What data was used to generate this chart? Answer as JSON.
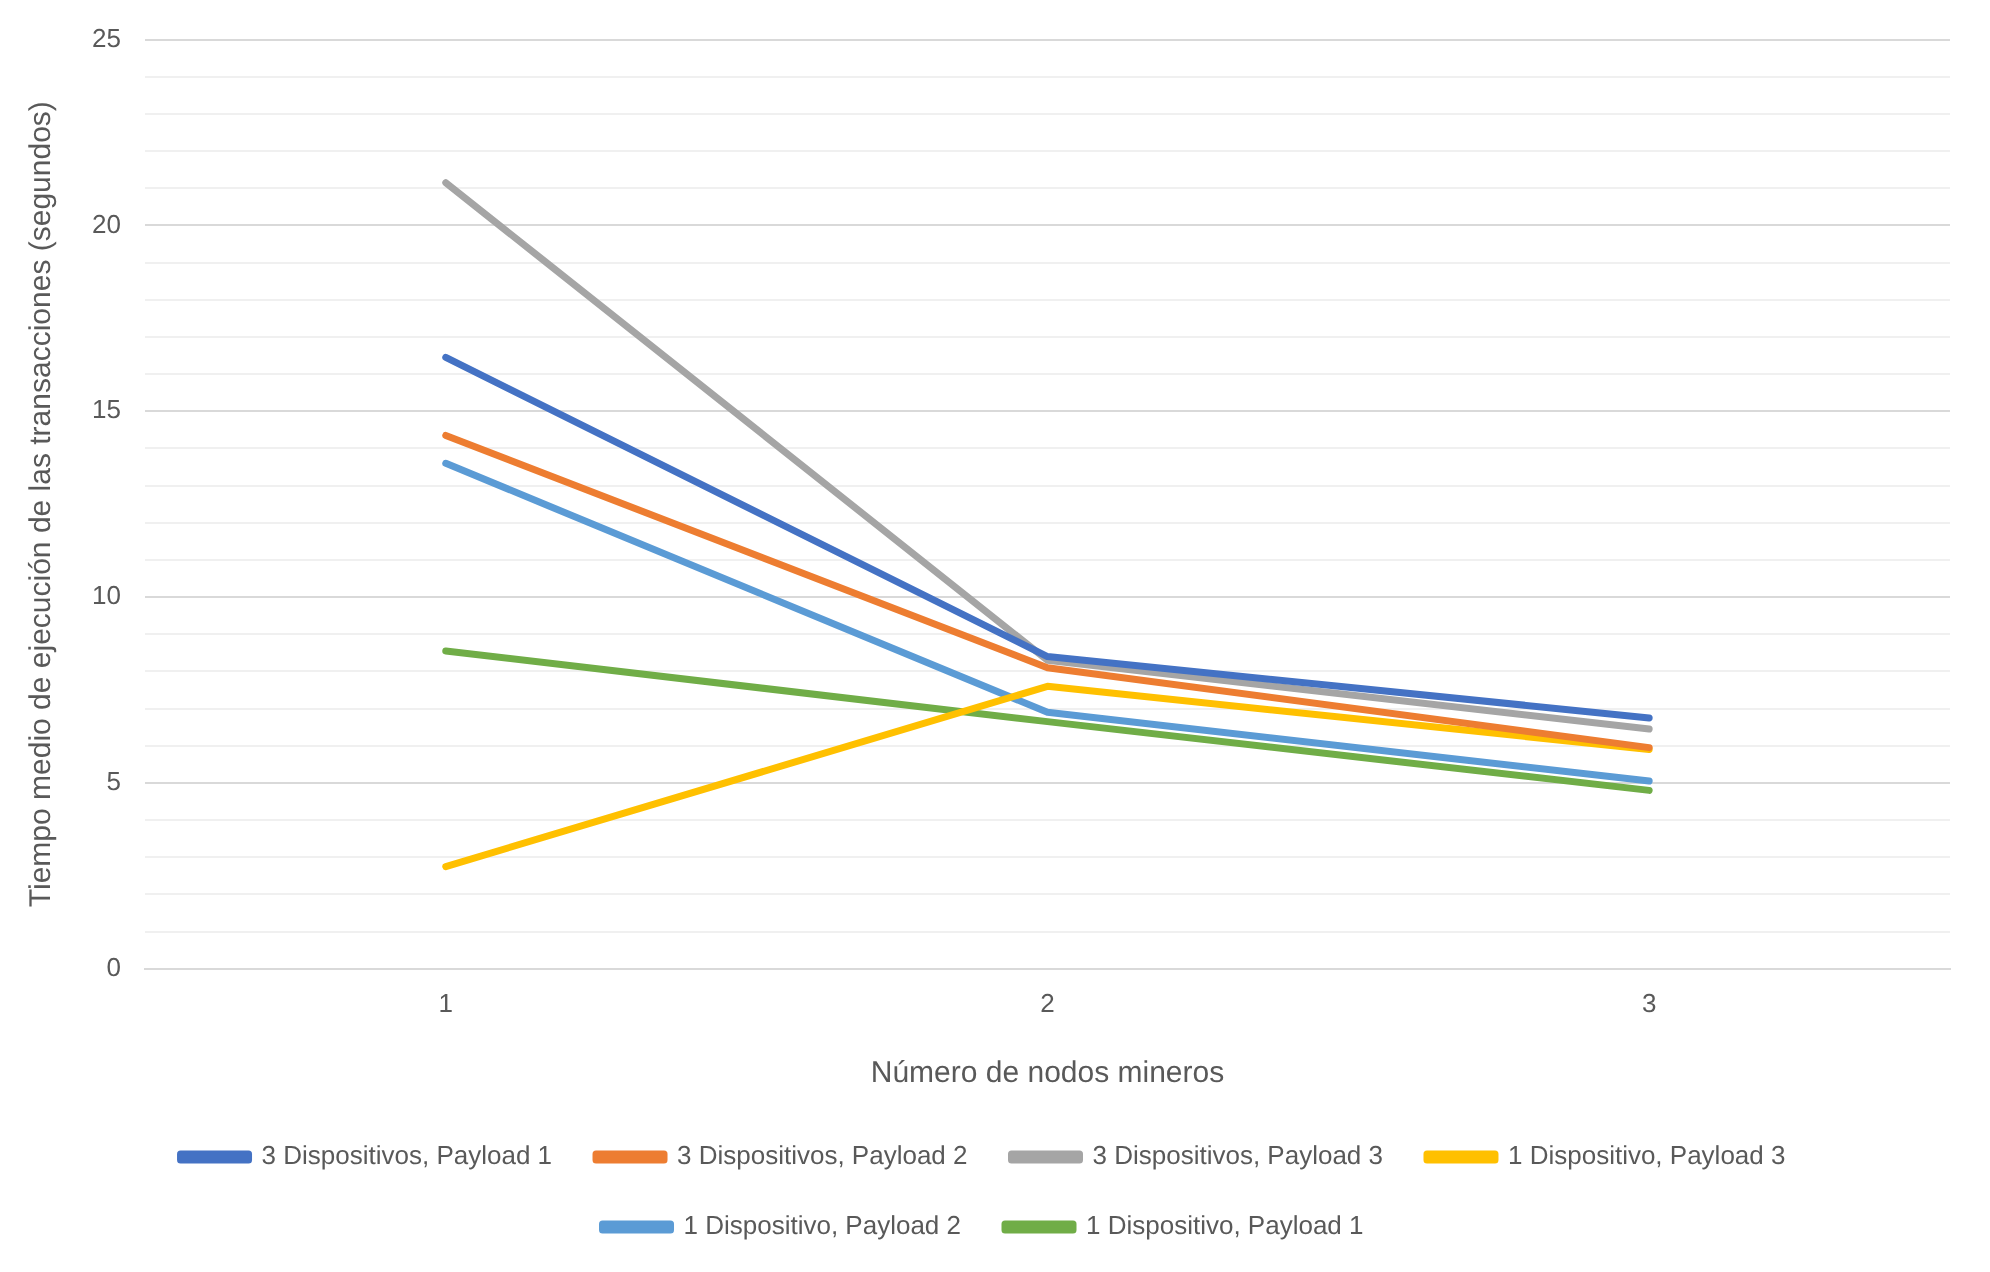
{
  "chart_data": {
    "type": "line",
    "xlabel": "Número de nodos mineros",
    "ylabel": "Tiempo medio de ejecución de las transacciones (segundos)",
    "categories": [
      "1",
      "2",
      "3"
    ],
    "series": [
      {
        "name": "3 Dispositivos, Payload 1",
        "color": "#4472c4",
        "values": [
          16.45,
          8.4,
          6.75
        ]
      },
      {
        "name": "3 Dispositivos, Payload 2",
        "color": "#ed7d31",
        "values": [
          14.35,
          8.1,
          5.95
        ]
      },
      {
        "name": "3 Dispositivos, Payload 3",
        "color": "#a5a5a5",
        "values": [
          21.15,
          8.3,
          6.45
        ]
      },
      {
        "name": "1 Dispositivo, Payload 3",
        "color": "#ffc000",
        "values": [
          2.75,
          7.6,
          5.9
        ]
      },
      {
        "name": "1 Dispositivo, Payload 2",
        "color": "#5b9bd5",
        "values": [
          13.6,
          6.9,
          5.05
        ]
      },
      {
        "name": "1 Dispositivo, Payload 1",
        "color": "#70ad47",
        "values": [
          8.55,
          6.65,
          4.8
        ]
      }
    ],
    "ylim": [
      0,
      25
    ],
    "yticks": [
      0,
      {
        "value": 1,
        "label": null
      },
      {
        "value": 2,
        "label": null
      },
      {
        "value": 3,
        "label": null
      },
      {
        "value": 4,
        "label": null
      },
      5,
      {
        "value": 6,
        "label": null
      },
      {
        "value": 7,
        "label": null
      },
      {
        "value": 8,
        "label": null
      },
      {
        "value": 9,
        "label": null
      },
      10,
      {
        "value": 11,
        "label": null
      },
      {
        "value": 12,
        "label": null
      },
      {
        "value": 13,
        "label": null
      },
      {
        "value": 14,
        "label": null
      },
      15,
      {
        "value": 16,
        "label": null
      },
      {
        "value": 17,
        "label": null
      },
      {
        "value": 18,
        "label": null
      },
      {
        "value": 19,
        "label": null
      },
      20,
      {
        "value": 21,
        "label": null
      },
      {
        "value": 22,
        "label": null
      },
      {
        "value": 23,
        "label": null
      },
      {
        "value": 24,
        "label": null
      },
      25
    ],
    "grid": "y",
    "legend": "bottom",
    "marker": "none",
    "line_style": "solid"
  }
}
